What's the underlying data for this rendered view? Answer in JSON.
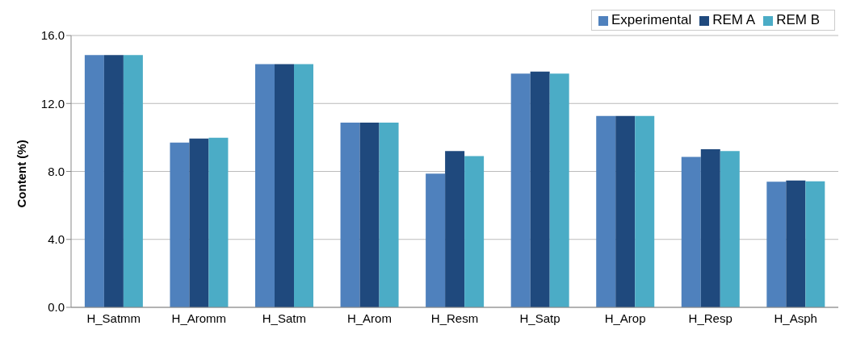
{
  "chart_data": {
    "type": "bar",
    "ylabel": "Content (%)",
    "categories": [
      "H_Satmm",
      "H_Aromm",
      "H_Satm",
      "H_Arom",
      "H_Resm",
      "H_Satp",
      "H_Arop",
      "H_Resp",
      "H_Asph"
    ],
    "series": [
      {
        "name": "Experimental",
        "color": "#4f81bd",
        "values": [
          14.85,
          9.7,
          14.32,
          10.87,
          7.87,
          13.76,
          11.27,
          8.86,
          7.39
        ]
      },
      {
        "name": "REM A",
        "color": "#1f497d",
        "values": [
          14.85,
          9.93,
          14.32,
          10.87,
          9.2,
          13.87,
          11.27,
          9.3,
          7.47
        ]
      },
      {
        "name": "REM B",
        "color": "#4bacc6",
        "values": [
          14.85,
          9.98,
          14.32,
          10.87,
          8.9,
          13.76,
          11.27,
          9.2,
          7.42
        ]
      }
    ],
    "ylim": [
      0,
      16
    ],
    "yticks": [
      {
        "value": 0,
        "label": "0.0"
      },
      {
        "value": 4,
        "label": "4.0"
      },
      {
        "value": 8,
        "label": "8.0"
      },
      {
        "value": 12,
        "label": "12.0"
      },
      {
        "value": 16,
        "label": "16.0"
      }
    ],
    "grid": "y",
    "legend": "top right"
  }
}
